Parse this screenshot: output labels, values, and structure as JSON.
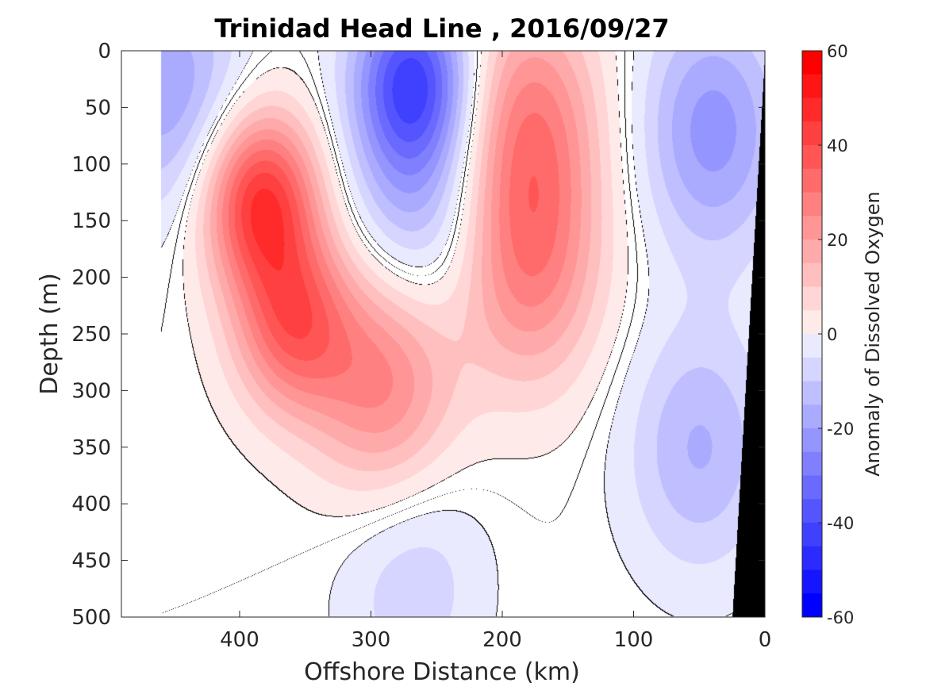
{
  "chart_data": {
    "type": "heatmap",
    "subtype": "filled-contour section",
    "title": "Trinidad Head Line , 2016/09/27",
    "xlabel": "Offshore Distance (km)",
    "ylabel": "Depth (m)",
    "colorbar_label": "Anomaly of Dissolved Oxygen",
    "x_reversed": true,
    "y_reversed": true,
    "xlim": [
      0,
      490
    ],
    "ylim": [
      0,
      500
    ],
    "x_ticks": [
      400,
      300,
      200,
      100,
      0
    ],
    "x_tick_labels": [
      "400",
      "300",
      "200",
      "100",
      "0"
    ],
    "y_ticks": [
      0,
      50,
      100,
      150,
      200,
      250,
      300,
      350,
      400,
      450,
      500
    ],
    "y_tick_labels": [
      "0",
      "50",
      "100",
      "150",
      "200",
      "250",
      "300",
      "350",
      "400",
      "450",
      "500"
    ],
    "colorbar_ticks": [
      60,
      40,
      20,
      0,
      -20,
      -40,
      -60
    ],
    "colorbar_tick_labels": [
      "60",
      "40",
      "20",
      "0",
      "-20",
      "-40",
      "-60"
    ],
    "clim": [
      -60,
      60
    ],
    "contour_step": 5,
    "zero_contour_shown": true,
    "colors": {
      "max": "#ff0000",
      "zero": "#ffffff",
      "min": "#0000ff",
      "bathymetry": "#000000",
      "contour_line": "#000000"
    },
    "data_extent_km": [
      0,
      460
    ],
    "features": [
      {
        "kind": "anomaly_core",
        "x_km": 385,
        "depth_m": 130,
        "value": 48
      },
      {
        "kind": "anomaly_core",
        "x_km": 360,
        "depth_m": 240,
        "value": 35
      },
      {
        "kind": "anomaly_core",
        "x_km": 290,
        "depth_m": 290,
        "value": 30
      },
      {
        "kind": "anomaly_core",
        "x_km": 180,
        "depth_m": 60,
        "value": 28
      },
      {
        "kind": "anomaly_core",
        "x_km": 180,
        "depth_m": 190,
        "value": 28
      },
      {
        "kind": "anomaly_core",
        "x_km": 268,
        "depth_m": 25,
        "value": -42
      },
      {
        "kind": "anomaly_core",
        "x_km": 265,
        "depth_m": 140,
        "value": -20
      },
      {
        "kind": "anomaly_core",
        "x_km": 450,
        "depth_m": 40,
        "value": -22
      },
      {
        "kind": "anomaly_core",
        "x_km": 40,
        "depth_m": 70,
        "value": -25
      },
      {
        "kind": "anomaly_core",
        "x_km": 50,
        "depth_m": 350,
        "value": -18
      },
      {
        "kind": "anomaly_core",
        "x_km": 270,
        "depth_m": 460,
        "value": -12
      }
    ]
  }
}
